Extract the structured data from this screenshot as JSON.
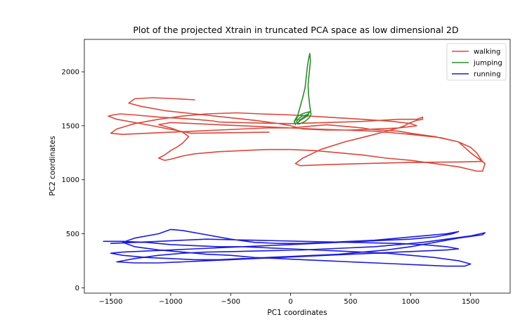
{
  "chart_data": {
    "type": "line",
    "title": "Plot of the projected Xtrain in truncated PCA space as low dimensional 2D",
    "xlabel": "PC1 coordinates",
    "ylabel": "PC2 coordinates",
    "xlim": [
      -1720,
      1830
    ],
    "ylim": [
      -50,
      2300
    ],
    "xticks": [
      -1500,
      -1000,
      -500,
      0,
      500,
      1000,
      1500
    ],
    "yticks": [
      0,
      500,
      1000,
      1500,
      2000
    ],
    "xtick_labels": [
      "−1500",
      "−1000",
      "−500",
      "0",
      "500",
      "1000",
      "1500"
    ],
    "ytick_labels": [
      "0",
      "500",
      "1000",
      "1500",
      "2000"
    ],
    "grid": false,
    "legend": "top-right",
    "series": [
      {
        "name": "walking",
        "color": "#d9483b",
        "x": [
          -180,
          -830,
          -1200,
          -1450,
          -1520,
          -1480,
          -1420,
          -1300,
          -1100,
          -950,
          -800,
          -650,
          -600,
          -450,
          -250,
          0,
          300,
          600,
          900,
          1050,
          1100,
          1100,
          1050,
          980,
          950,
          900,
          700,
          450,
          250,
          100,
          40,
          80,
          300,
          600,
          1000,
          1400,
          1600,
          1580,
          1550,
          1500,
          1400,
          1250,
          1000,
          700,
          450,
          200,
          0,
          -200,
          -400,
          -600,
          -800,
          -1000,
          -1100,
          -1000,
          -900,
          -850,
          -900,
          -950,
          -1000,
          -1050,
          -1100,
          -1050,
          -1000,
          -900,
          -800,
          -600,
          -400,
          -200,
          0,
          200,
          400,
          600,
          800,
          1000,
          1200,
          1400,
          1550,
          1600,
          1620,
          1500,
          1400,
          1200,
          1000,
          900,
          750,
          650,
          600,
          500,
          400,
          300,
          200,
          100,
          0,
          -200,
          -400,
          -600,
          -800,
          -1000,
          -1200,
          -1400,
          -1500,
          -1450,
          -1300,
          -1100,
          -900,
          -700,
          -450,
          -250,
          0,
          300,
          600,
          850,
          1000,
          1050,
          900,
          700,
          500,
          300,
          100,
          0,
          -100,
          -300,
          -550,
          -800,
          -1050,
          -1250,
          -1350,
          -1300,
          -1150,
          -950,
          -800
        ],
        "y": [
          1440,
          1430,
          1510,
          1560,
          1590,
          1600,
          1610,
          1600,
          1580,
          1570,
          1560,
          1545,
          1535,
          1530,
          1525,
          1520,
          1530,
          1540,
          1560,
          1560,
          1580,
          1560,
          1550,
          1520,
          1500,
          1480,
          1420,
          1350,
          1280,
          1200,
          1150,
          1130,
          1140,
          1150,
          1160,
          1165,
          1170,
          1200,
          1250,
          1300,
          1350,
          1390,
          1420,
          1450,
          1460,
          1470,
          1480,
          1490,
          1500,
          1510,
          1520,
          1530,
          1510,
          1480,
          1440,
          1400,
          1340,
          1300,
          1270,
          1230,
          1200,
          1180,
          1190,
          1220,
          1240,
          1260,
          1270,
          1280,
          1280,
          1270,
          1250,
          1230,
          1200,
          1180,
          1150,
          1120,
          1080,
          1080,
          1150,
          1250,
          1350,
          1400,
          1430,
          1450,
          1460,
          1470,
          1480,
          1490,
          1500,
          1510,
          1500,
          1490,
          1480,
          1480,
          1470,
          1460,
          1450,
          1440,
          1430,
          1420,
          1430,
          1470,
          1520,
          1560,
          1590,
          1610,
          1620,
          1610,
          1600,
          1580,
          1560,
          1540,
          1520,
          1500,
          1480,
          1470,
          1460,
          1460,
          1470,
          1500,
          1520,
          1550,
          1580,
          1610,
          1640,
          1680,
          1710,
          1750,
          1760,
          1750,
          1740
        ]
      },
      {
        "name": "jumping",
        "color": "#2e8b2e",
        "x": [
          40,
          30,
          50,
          60,
          80,
          100,
          120,
          130,
          140,
          150,
          160,
          165,
          155,
          145,
          150,
          160,
          170,
          160,
          140,
          120,
          100,
          80,
          60,
          50,
          70,
          100,
          130,
          150,
          140,
          110,
          80,
          60,
          40,
          30,
          50,
          80,
          120,
          160,
          140,
          100,
          70
        ],
        "y": [
          1510,
          1540,
          1560,
          1600,
          1680,
          1760,
          1850,
          1950,
          2050,
          2120,
          2170,
          2100,
          1990,
          1880,
          1780,
          1680,
          1610,
          1580,
          1560,
          1540,
          1530,
          1520,
          1515,
          1540,
          1570,
          1590,
          1600,
          1610,
          1590,
          1570,
          1550,
          1530,
          1520,
          1540,
          1580,
          1600,
          1620,
          1630,
          1600,
          1570,
          1550
        ]
      },
      {
        "name": "running",
        "color": "#1a1ae0",
        "x": [
          -1560,
          -1400,
          -1200,
          -1000,
          -800,
          -600,
          -400,
          -200,
          0,
          200,
          400,
          600,
          800,
          1000,
          1200,
          1400,
          1500,
          1450,
          1300,
          1100,
          900,
          700,
          500,
          300,
          100,
          -100,
          -300,
          -500,
          -700,
          -900,
          -1100,
          -1300,
          -1400,
          -1300,
          -1100,
          -1000,
          -900,
          -700,
          -500,
          -300,
          -100,
          100,
          300,
          500,
          700,
          900,
          1100,
          1300,
          1400,
          1350,
          1200,
          1000,
          800,
          600,
          400,
          200,
          0,
          -200,
          -400,
          -600,
          -800,
          -1000,
          -1200,
          -1400,
          -1500,
          -1400,
          -1200,
          -1000,
          -800,
          -600,
          -400,
          -200,
          0,
          200,
          400,
          600,
          800,
          1000,
          1200,
          1400,
          1600,
          1620,
          1500,
          1300,
          1100,
          900,
          700,
          500,
          300,
          100,
          -100,
          -300,
          -500,
          -700,
          -900,
          -1100,
          -1300,
          -1450,
          -1300,
          -1100,
          -900,
          -700,
          -500,
          -300,
          -100,
          100,
          300,
          500,
          700,
          900,
          1100,
          1300,
          1400,
          1300,
          1100,
          900,
          700,
          500,
          300,
          100,
          -100,
          -300,
          -500,
          -700,
          -900,
          -1100,
          -1300,
          -1500
        ],
        "y": [
          430,
          430,
          420,
          400,
          390,
          380,
          380,
          370,
          360,
          350,
          340,
          330,
          320,
          300,
          280,
          250,
          220,
          200,
          200,
          210,
          220,
          230,
          240,
          250,
          260,
          270,
          280,
          300,
          310,
          330,
          350,
          380,
          420,
          460,
          500,
          540,
          530,
          490,
          450,
          420,
          410,
          410,
          420,
          430,
          440,
          460,
          480,
          500,
          520,
          500,
          470,
          450,
          440,
          430,
          420,
          410,
          400,
          390,
          380,
          370,
          360,
          350,
          340,
          330,
          320,
          300,
          280,
          270,
          260,
          260,
          270,
          280,
          290,
          300,
          310,
          330,
          350,
          380,
          420,
          460,
          490,
          510,
          480,
          450,
          420,
          400,
          380,
          370,
          360,
          350,
          345,
          340,
          335,
          330,
          320,
          300,
          270,
          240,
          230,
          230,
          240,
          250,
          260,
          270,
          280,
          290,
          300,
          310,
          320,
          330,
          340,
          350,
          360,
          380,
          400,
          410,
          415,
          420,
          425,
          430,
          435,
          440,
          445,
          450,
          440,
          430,
          420,
          410
        ]
      }
    ]
  }
}
